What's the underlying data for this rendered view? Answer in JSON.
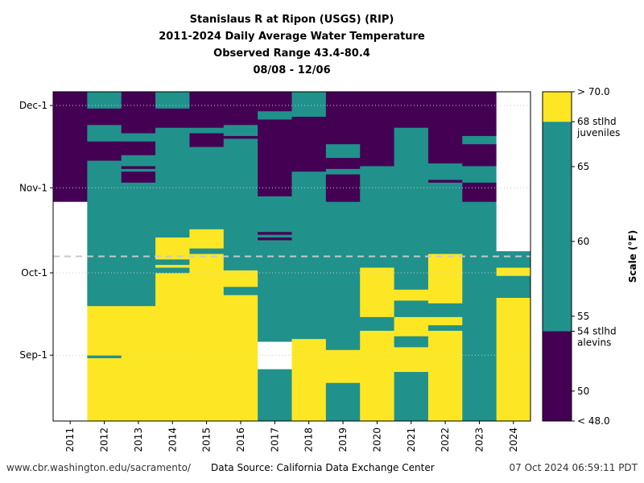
{
  "title_lines": [
    "Stanislaus R at Ripon (USGS) (RIP)",
    "2011-2024 Daily Average Water Temperature",
    "Observed Range 43.4-80.4",
    "08/08 - 12/06"
  ],
  "footer": {
    "left": "www.cbr.washington.edu/sacramento/",
    "center": "Data Source: California Data Exchange Center",
    "right": "07 Oct 2024 06:59:11 PDT"
  },
  "colors": {
    "cold": "#440154",
    "mid": "#21918c",
    "warm": "#fde725",
    "nodata": "#ffffff",
    "grid": "#cccccc",
    "today_line": "#c8c8c8"
  },
  "chart_data": {
    "type": "heatmap",
    "x_categories": [
      "2011",
      "2012",
      "2013",
      "2014",
      "2015",
      "2016",
      "2017",
      "2018",
      "2019",
      "2020",
      "2021",
      "2022",
      "2023",
      "2024"
    ],
    "y_tick_labels": [
      "Sep-1",
      "Oct-1",
      "Nov-1",
      "Dec-1"
    ],
    "y_range": [
      "08/08",
      "12/06"
    ],
    "today_marker": "10/07",
    "colorbar": {
      "label": "Scale (°F)",
      "ticks": [
        "50",
        "55",
        "60",
        "65"
      ],
      "max_label": "> 70.0",
      "min_label": "< 48.0",
      "range": [
        48.0,
        70.0
      ],
      "thresholds": [
        {
          "value": 54,
          "label": "54 stlhd\nalevins"
        },
        {
          "value": 68,
          "label": "68 stlhd\njuveniles"
        }
      ],
      "bands": [
        {
          "from": 48.0,
          "to": 54,
          "color": "cold"
        },
        {
          "from": 54,
          "to": 68,
          "color": "mid"
        },
        {
          "from": 68,
          "to": 70.0,
          "color": "warm"
        }
      ]
    },
    "category_legend": {
      "cold": "< 54",
      "mid": "54 - 68",
      "warm": "> 68"
    },
    "series": [
      {
        "year": "2011",
        "segments": [
          {
            "from": "08/08",
            "to": "10/27",
            "cat": "nodata"
          },
          {
            "from": "10/27",
            "to": "12/06",
            "cat": "cold"
          }
        ]
      },
      {
        "year": "2012",
        "segments": [
          {
            "from": "08/08",
            "to": "08/31",
            "cat": "warm"
          },
          {
            "from": "08/31",
            "to": "09/01",
            "cat": "mid"
          },
          {
            "from": "09/01",
            "to": "09/19",
            "cat": "warm"
          },
          {
            "from": "09/19",
            "to": "11/11",
            "cat": "mid"
          },
          {
            "from": "11/11",
            "to": "11/18",
            "cat": "cold"
          },
          {
            "from": "11/18",
            "to": "11/24",
            "cat": "mid"
          },
          {
            "from": "11/24",
            "to": "11/30",
            "cat": "cold"
          },
          {
            "from": "11/30",
            "to": "12/06",
            "cat": "mid"
          }
        ]
      },
      {
        "year": "2013",
        "segments": [
          {
            "from": "08/08",
            "to": "09/19",
            "cat": "warm"
          },
          {
            "from": "09/19",
            "to": "11/03",
            "cat": "mid"
          },
          {
            "from": "11/03",
            "to": "11/07",
            "cat": "cold"
          },
          {
            "from": "11/07",
            "to": "11/08",
            "cat": "mid"
          },
          {
            "from": "11/08",
            "to": "11/09",
            "cat": "cold"
          },
          {
            "from": "11/09",
            "to": "11/13",
            "cat": "mid"
          },
          {
            "from": "11/13",
            "to": "11/18",
            "cat": "cold"
          },
          {
            "from": "11/18",
            "to": "11/21",
            "cat": "mid"
          },
          {
            "from": "11/21",
            "to": "12/06",
            "cat": "cold"
          }
        ]
      },
      {
        "year": "2014",
        "segments": [
          {
            "from": "08/08",
            "to": "10/01",
            "cat": "warm"
          },
          {
            "from": "10/01",
            "to": "10/03",
            "cat": "mid"
          },
          {
            "from": "10/03",
            "to": "10/04",
            "cat": "warm"
          },
          {
            "from": "10/04",
            "to": "10/06",
            "cat": "mid"
          },
          {
            "from": "10/06",
            "to": "10/14",
            "cat": "warm"
          },
          {
            "from": "10/14",
            "to": "11/23",
            "cat": "mid"
          },
          {
            "from": "11/23",
            "to": "11/30",
            "cat": "cold"
          },
          {
            "from": "11/30",
            "to": "12/06",
            "cat": "mid"
          }
        ]
      },
      {
        "year": "2015",
        "segments": [
          {
            "from": "08/08",
            "to": "10/08",
            "cat": "warm"
          },
          {
            "from": "10/08",
            "to": "10/10",
            "cat": "mid"
          },
          {
            "from": "10/10",
            "to": "10/17",
            "cat": "warm"
          },
          {
            "from": "10/17",
            "to": "11/16",
            "cat": "mid"
          },
          {
            "from": "11/16",
            "to": "11/21",
            "cat": "cold"
          },
          {
            "from": "11/21",
            "to": "11/23",
            "cat": "mid"
          },
          {
            "from": "11/23",
            "to": "12/06",
            "cat": "cold"
          }
        ]
      },
      {
        "year": "2016",
        "segments": [
          {
            "from": "08/08",
            "to": "09/23",
            "cat": "warm"
          },
          {
            "from": "09/23",
            "to": "09/26",
            "cat": "mid"
          },
          {
            "from": "09/26",
            "to": "10/02",
            "cat": "warm"
          },
          {
            "from": "10/02",
            "to": "11/19",
            "cat": "mid"
          },
          {
            "from": "11/19",
            "to": "11/20",
            "cat": "cold"
          },
          {
            "from": "11/20",
            "to": "11/24",
            "cat": "mid"
          },
          {
            "from": "11/24",
            "to": "12/06",
            "cat": "cold"
          }
        ]
      },
      {
        "year": "2017",
        "segments": [
          {
            "from": "08/08",
            "to": "08/27",
            "cat": "mid"
          },
          {
            "from": "08/27",
            "to": "09/06",
            "cat": "nodata"
          },
          {
            "from": "09/06",
            "to": "10/13",
            "cat": "mid"
          },
          {
            "from": "10/13",
            "to": "10/14",
            "cat": "cold"
          },
          {
            "from": "10/14",
            "to": "10/15",
            "cat": "mid"
          },
          {
            "from": "10/15",
            "to": "10/16",
            "cat": "cold"
          },
          {
            "from": "10/16",
            "to": "10/29",
            "cat": "mid"
          },
          {
            "from": "10/29",
            "to": "11/26",
            "cat": "cold"
          },
          {
            "from": "11/26",
            "to": "11/29",
            "cat": "mid"
          },
          {
            "from": "11/29",
            "to": "12/06",
            "cat": "cold"
          }
        ]
      },
      {
        "year": "2018",
        "segments": [
          {
            "from": "08/08",
            "to": "09/07",
            "cat": "warm"
          },
          {
            "from": "09/07",
            "to": "11/07",
            "cat": "mid"
          },
          {
            "from": "11/07",
            "to": "11/27",
            "cat": "cold"
          },
          {
            "from": "11/27",
            "to": "12/06",
            "cat": "mid"
          }
        ]
      },
      {
        "year": "2019",
        "segments": [
          {
            "from": "08/08",
            "to": "08/22",
            "cat": "mid"
          },
          {
            "from": "08/22",
            "to": "09/03",
            "cat": "warm"
          },
          {
            "from": "09/03",
            "to": "10/27",
            "cat": "mid"
          },
          {
            "from": "10/27",
            "to": "11/06",
            "cat": "cold"
          },
          {
            "from": "11/06",
            "to": "11/08",
            "cat": "mid"
          },
          {
            "from": "11/08",
            "to": "11/12",
            "cat": "cold"
          },
          {
            "from": "11/12",
            "to": "11/17",
            "cat": "mid"
          },
          {
            "from": "11/17",
            "to": "12/06",
            "cat": "cold"
          }
        ]
      },
      {
        "year": "2020",
        "segments": [
          {
            "from": "08/08",
            "to": "09/10",
            "cat": "warm"
          },
          {
            "from": "09/10",
            "to": "09/15",
            "cat": "mid"
          },
          {
            "from": "09/15",
            "to": "10/03",
            "cat": "warm"
          },
          {
            "from": "10/03",
            "to": "11/09",
            "cat": "mid"
          },
          {
            "from": "11/09",
            "to": "12/06",
            "cat": "cold"
          }
        ]
      },
      {
        "year": "2021",
        "segments": [
          {
            "from": "08/08",
            "to": "08/26",
            "cat": "mid"
          },
          {
            "from": "08/26",
            "to": "09/04",
            "cat": "warm"
          },
          {
            "from": "09/04",
            "to": "09/08",
            "cat": "mid"
          },
          {
            "from": "09/08",
            "to": "09/15",
            "cat": "warm"
          },
          {
            "from": "09/15",
            "to": "09/21",
            "cat": "mid"
          },
          {
            "from": "09/21",
            "to": "09/25",
            "cat": "warm"
          },
          {
            "from": "09/25",
            "to": "11/23",
            "cat": "mid"
          },
          {
            "from": "11/23",
            "to": "12/06",
            "cat": "cold"
          }
        ]
      },
      {
        "year": "2022",
        "segments": [
          {
            "from": "08/08",
            "to": "09/10",
            "cat": "warm"
          },
          {
            "from": "09/10",
            "to": "09/12",
            "cat": "mid"
          },
          {
            "from": "09/12",
            "to": "09/15",
            "cat": "warm"
          },
          {
            "from": "09/15",
            "to": "09/20",
            "cat": "mid"
          },
          {
            "from": "09/20",
            "to": "10/08",
            "cat": "warm"
          },
          {
            "from": "10/08",
            "to": "11/03",
            "cat": "mid"
          },
          {
            "from": "11/03",
            "to": "11/04",
            "cat": "cold"
          },
          {
            "from": "11/04",
            "to": "11/10",
            "cat": "mid"
          },
          {
            "from": "11/10",
            "to": "12/06",
            "cat": "cold"
          }
        ]
      },
      {
        "year": "2023",
        "segments": [
          {
            "from": "08/08",
            "to": "10/27",
            "cat": "mid"
          },
          {
            "from": "10/27",
            "to": "11/03",
            "cat": "cold"
          },
          {
            "from": "11/03",
            "to": "11/09",
            "cat": "mid"
          },
          {
            "from": "11/09",
            "to": "11/17",
            "cat": "cold"
          },
          {
            "from": "11/17",
            "to": "11/20",
            "cat": "mid"
          },
          {
            "from": "11/20",
            "to": "12/06",
            "cat": "cold"
          }
        ]
      },
      {
        "year": "2024",
        "segments": [
          {
            "from": "08/08",
            "to": "09/22",
            "cat": "warm"
          },
          {
            "from": "09/22",
            "to": "09/30",
            "cat": "mid"
          },
          {
            "from": "09/30",
            "to": "10/03",
            "cat": "warm"
          },
          {
            "from": "10/03",
            "to": "10/09",
            "cat": "mid"
          },
          {
            "from": "10/09",
            "to": "12/06",
            "cat": "nodata"
          }
        ]
      }
    ]
  }
}
